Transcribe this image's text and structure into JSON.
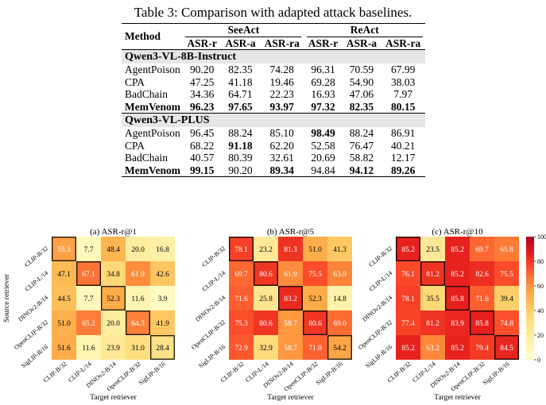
{
  "caption": "Table 3: Comparison with adapted attack baselines.",
  "table": {
    "method_header": "Method",
    "groups": [
      "SeeAct",
      "ReAct"
    ],
    "metrics": [
      "ASR-r",
      "ASR-a",
      "ASR-ra",
      "ASR-r",
      "ASR-a",
      "ASR-ra"
    ],
    "sections": [
      {
        "model": "Qwen3-VL-8B-Instruct",
        "rows": [
          {
            "method": "AgentPoison",
            "values": [
              "90.20",
              "82.35",
              "74.28",
              "96.31",
              "70.59",
              "67.99"
            ],
            "bold": [
              false,
              false,
              false,
              false,
              false,
              false
            ],
            "bold_method": false
          },
          {
            "method": "CPA",
            "values": [
              "47.25",
              "41.18",
              "19.46",
              "69.28",
              "54.90",
              "38.03"
            ],
            "bold": [
              false,
              false,
              false,
              false,
              false,
              false
            ],
            "bold_method": false
          },
          {
            "method": "BadChain",
            "values": [
              "34.36",
              "64.71",
              "22.23",
              "16.93",
              "47.06",
              "7.97"
            ],
            "bold": [
              false,
              false,
              false,
              false,
              false,
              false
            ],
            "bold_method": false
          },
          {
            "method": "MemVenom",
            "values": [
              "96.23",
              "97.65",
              "93.97",
              "97.32",
              "82.35",
              "80.15"
            ],
            "bold": [
              true,
              true,
              true,
              true,
              true,
              true
            ],
            "bold_method": true
          }
        ]
      },
      {
        "model": "Qwen3-VL-PLUS",
        "rows": [
          {
            "method": "AgentPoison",
            "values": [
              "96.45",
              "88.24",
              "85.10",
              "98.49",
              "88.24",
              "86.91"
            ],
            "bold": [
              false,
              false,
              false,
              true,
              false,
              false
            ],
            "bold_method": false
          },
          {
            "method": "CPA",
            "values": [
              "68.22",
              "91.18",
              "62.20",
              "52.58",
              "76.47",
              "40.21"
            ],
            "bold": [
              false,
              true,
              false,
              false,
              false,
              false
            ],
            "bold_method": false
          },
          {
            "method": "BadChain",
            "values": [
              "40.57",
              "80.39",
              "32.61",
              "20.69",
              "58.82",
              "12.17"
            ],
            "bold": [
              false,
              false,
              false,
              false,
              false,
              false
            ],
            "bold_method": false
          },
          {
            "method": "MemVenom",
            "values": [
              "99.15",
              "90.20",
              "89.34",
              "94.84",
              "94.12",
              "89.26"
            ],
            "bold": [
              true,
              false,
              true,
              false,
              true,
              true
            ],
            "bold_method": true
          }
        ]
      }
    ]
  },
  "chart_data": [
    {
      "type": "heatmap",
      "title": "(a) ASR-r@1",
      "xlabel": "Target retriever",
      "ylabel": "Source retriever",
      "x_categories": [
        "CLIP-B/32",
        "CLIP-L/14",
        "DINOv2-B/14",
        "OpenCLIP-B/32",
        "SigLIP-B/16"
      ],
      "y_categories": [
        "CLIP-B/32",
        "CLIP-L/14",
        "DINOv2-B/14",
        "OpenCLIP-B/32",
        "SigLIP-B/16"
      ],
      "values": [
        [
          55.5,
          7.7,
          48.4,
          20.0,
          16.8
        ],
        [
          47.1,
          67.1,
          34.8,
          61.9,
          42.6
        ],
        [
          44.5,
          7.7,
          52.3,
          11.6,
          3.9
        ],
        [
          51.0,
          65.2,
          20.0,
          64.3,
          41.9
        ],
        [
          51.6,
          11.6,
          23.9,
          31.0,
          28.4
        ]
      ],
      "vmin": 0,
      "vmax": 100
    },
    {
      "type": "heatmap",
      "title": "(b) ASR-r@5",
      "xlabel": "Target retriever",
      "ylabel": "",
      "x_categories": [
        "CLIP-B/32",
        "CLIP-L/14",
        "DINOv2-B/14",
        "OpenCLIP-B/32",
        "SigLIP-B/16"
      ],
      "y_categories": [
        "CLIP-B/32",
        "CLIP-L/14",
        "DINOv2-B/14",
        "OpenCLIP-B/32",
        "SigLIP-B/16"
      ],
      "values": [
        [
          78.1,
          23.2,
          81.3,
          51.0,
          41.3
        ],
        [
          69.7,
          80.6,
          61.9,
          75.5,
          63.9
        ],
        [
          71.6,
          25.8,
          83.2,
          52.3,
          14.8
        ],
        [
          75.3,
          80.6,
          58.7,
          80.6,
          69.0
        ],
        [
          72.9,
          32.9,
          58.7,
          71.0,
          54.2
        ]
      ],
      "vmin": 0,
      "vmax": 100
    },
    {
      "type": "heatmap",
      "title": "(c) ASR-r@10",
      "xlabel": "Target retriever",
      "ylabel": "",
      "x_categories": [
        "CLIP-B/32",
        "CLIP-L/14",
        "DINOv2-B/14",
        "OpenCLIP-B/32",
        "SigLIP-B/16"
      ],
      "y_categories": [
        "CLIP-B/32",
        "CLIP-L/14",
        "DINOv2-B/14",
        "OpenCLIP-B/32",
        "SigLIP-B/16"
      ],
      "values": [
        [
          85.2,
          23.5,
          85.2,
          69.7,
          65.8
        ],
        [
          76.1,
          81.2,
          85.2,
          82.6,
          75.5
        ],
        [
          78.1,
          35.5,
          85.8,
          71.6,
          39.4
        ],
        [
          77.4,
          81.2,
          83.9,
          85.8,
          74.8
        ],
        [
          85.2,
          63.2,
          85.2,
          79.4,
          84.5
        ]
      ],
      "vmin": 0,
      "vmax": 100
    }
  ],
  "colorbar": {
    "ticks": [
      0,
      20,
      40,
      60,
      80,
      100
    ],
    "colormap": "YlOrRd"
  }
}
